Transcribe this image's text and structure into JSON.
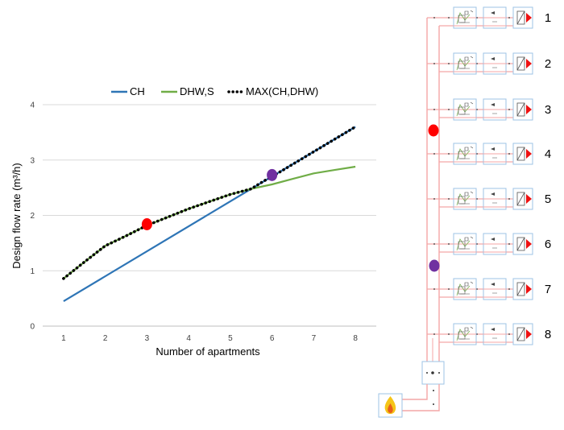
{
  "chart_data": {
    "type": "line",
    "title": "",
    "xlabel": "Number of apartments",
    "ylabel": "Design flow rate (m³/h)",
    "xlim": [
      0.5,
      8.5
    ],
    "ylim": [
      0,
      4
    ],
    "x_ticks": [
      "1",
      "2",
      "3",
      "4",
      "5",
      "6",
      "7",
      "8"
    ],
    "y_ticks": [
      "0",
      "1",
      "2",
      "3",
      "4"
    ],
    "grid": "horizontal",
    "legend_position": "top",
    "series": [
      {
        "name": "CH",
        "color": "#2e75b6",
        "style": "solid",
        "points": [
          [
            1,
            0.45
          ],
          [
            5.5,
            2.48
          ],
          [
            8,
            3.6
          ]
        ]
      },
      {
        "name": "DHW,S",
        "color": "#70ad47",
        "style": "solid",
        "points": [
          [
            1,
            0.86
          ],
          [
            1.5,
            1.16
          ],
          [
            2,
            1.45
          ],
          [
            2.5,
            1.63
          ],
          [
            3,
            1.82
          ],
          [
            3.5,
            1.97
          ],
          [
            4,
            2.12
          ],
          [
            4.5,
            2.25
          ],
          [
            5,
            2.38
          ],
          [
            5.5,
            2.48
          ],
          [
            6,
            2.56
          ],
          [
            6.5,
            2.66
          ],
          [
            7,
            2.76
          ],
          [
            7.5,
            2.82
          ],
          [
            8,
            2.88
          ]
        ]
      },
      {
        "name": "MAX(CH,DHW)",
        "color": "#000000",
        "style": "dotted",
        "points": [
          [
            1,
            0.86
          ],
          [
            1.5,
            1.16
          ],
          [
            2,
            1.45
          ],
          [
            2.5,
            1.63
          ],
          [
            3,
            1.82
          ],
          [
            3.5,
            1.97
          ],
          [
            4,
            2.12
          ],
          [
            4.5,
            2.25
          ],
          [
            5,
            2.38
          ],
          [
            5.5,
            2.48
          ],
          [
            5.8,
            2.62
          ],
          [
            6,
            2.7
          ],
          [
            7,
            3.15
          ],
          [
            8,
            3.6
          ]
        ]
      }
    ],
    "markers": [
      {
        "name": "red-marker",
        "x": 3,
        "y": 1.84,
        "color": "#ff0000"
      },
      {
        "name": "purple-marker",
        "x": 6,
        "y": 2.73,
        "color": "#7030a0"
      }
    ]
  },
  "diagram": {
    "apartment_labels": [
      "1",
      "2",
      "3",
      "4",
      "5",
      "6",
      "7",
      "8"
    ],
    "pipe_color": "#f4a6a6",
    "unit_border_color": "#9dc3e6",
    "markers": [
      {
        "name": "red-marker",
        "color": "#ff0000",
        "level": "between apartments 3 and 4"
      },
      {
        "name": "purple-marker",
        "color": "#7030a0",
        "level": "between apartments 6 and 7"
      }
    ]
  }
}
